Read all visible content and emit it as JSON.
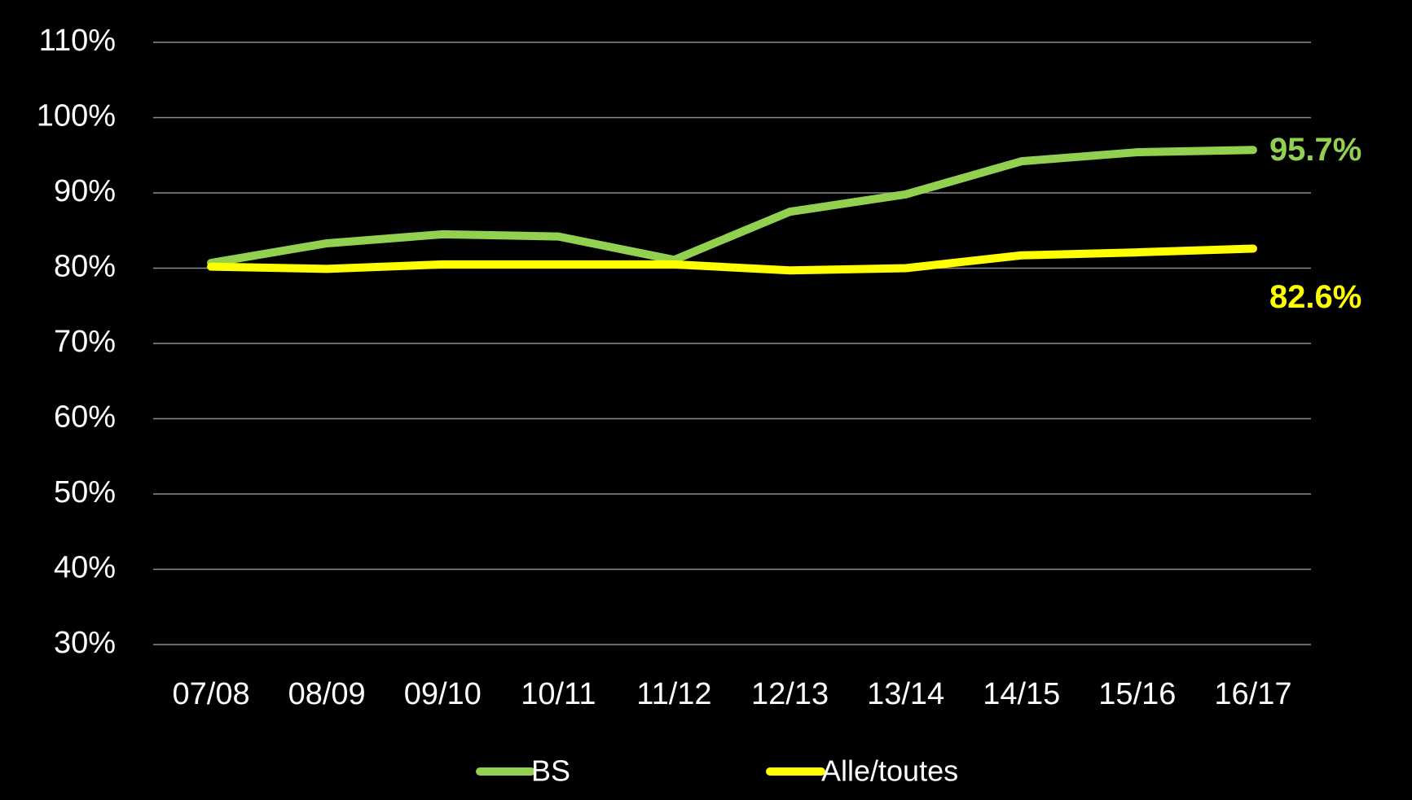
{
  "chart_data": {
    "type": "line",
    "categories": [
      "07/08",
      "08/09",
      "09/10",
      "10/11",
      "11/12",
      "12/13",
      "13/14",
      "14/15",
      "15/16",
      "16/17"
    ],
    "series": [
      {
        "name": "BS",
        "color": "#92d050",
        "values": [
          80.7,
          83.3,
          84.5,
          84.2,
          81.1,
          87.5,
          89.8,
          94.2,
          95.4,
          95.7
        ],
        "value_labels": [
          null,
          null,
          null,
          null,
          null,
          null,
          null,
          null,
          null,
          "95.7%"
        ]
      },
      {
        "name": "Alle/toutes",
        "color": "#ffff00",
        "values": [
          80.2,
          79.9,
          80.5,
          80.5,
          80.5,
          79.7,
          80.0,
          81.7,
          82.1,
          82.6
        ],
        "value_labels": [
          null,
          null,
          null,
          null,
          null,
          null,
          null,
          null,
          null,
          "82.6%"
        ]
      }
    ],
    "ylim": [
      30,
      110
    ],
    "yticks": [
      {
        "value": 30,
        "label": "30%"
      },
      {
        "value": 40,
        "label": "40%"
      },
      {
        "value": 50,
        "label": "50%"
      },
      {
        "value": 60,
        "label": "60%"
      },
      {
        "value": 70,
        "label": "70%"
      },
      {
        "value": 80,
        "label": "80%"
      },
      {
        "value": 90,
        "label": "90%"
      },
      {
        "value": 100,
        "label": "100%"
      },
      {
        "value": 110,
        "label": "110%"
      }
    ],
    "grid": true,
    "legend": "bottom"
  }
}
